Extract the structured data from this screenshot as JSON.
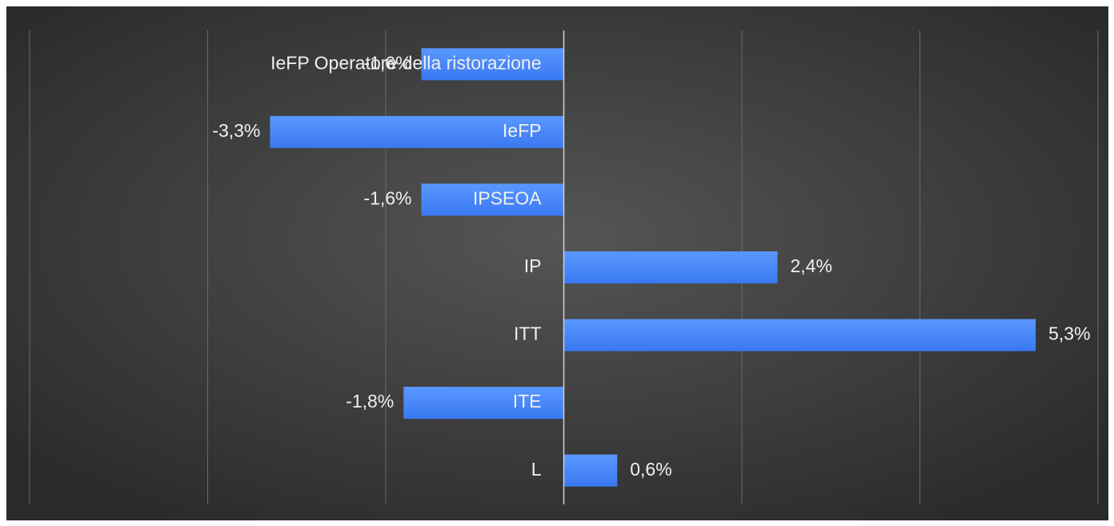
{
  "chart_data": {
    "type": "bar",
    "orientation": "horizontal",
    "categories": [
      "IeFP Operatore della ristorazione",
      "IeFP",
      "IPSEOA",
      "IP",
      "ITT",
      "ITE",
      "L"
    ],
    "values": [
      -1.6,
      -3.3,
      -1.6,
      2.4,
      5.3,
      -1.8,
      0.6
    ],
    "value_labels": [
      "-1,6%",
      "-3,3%",
      "-1,6%",
      "2,4%",
      "5,3%",
      "-1,8%",
      "0,6%"
    ],
    "color": "#4a88f8",
    "xlim": [
      -6,
      6
    ],
    "xticks": [
      -6,
      -4,
      -2,
      0,
      2,
      4,
      6
    ],
    "grid": true
  }
}
